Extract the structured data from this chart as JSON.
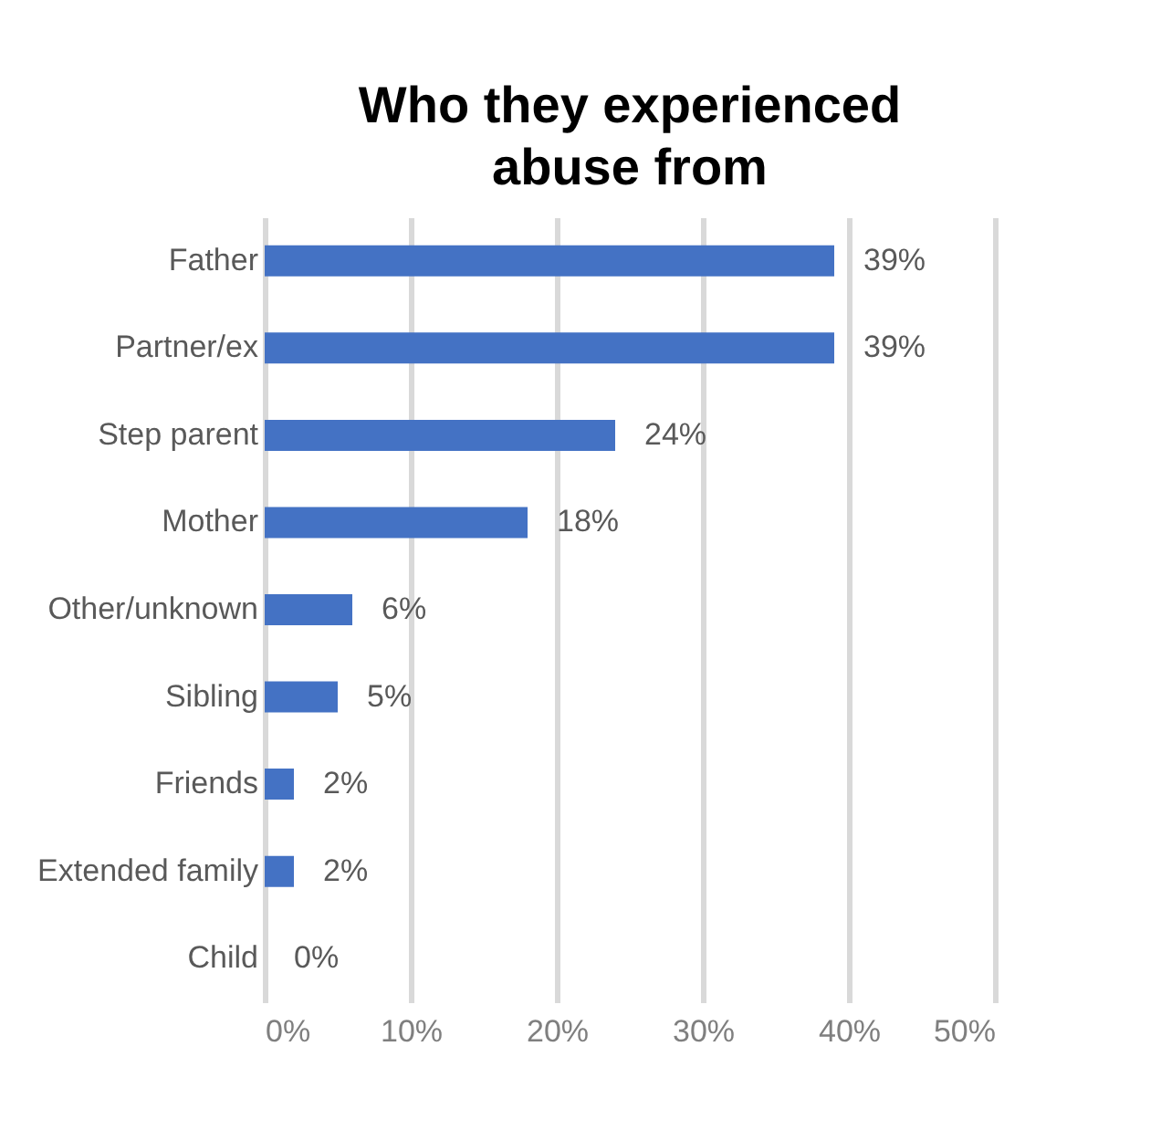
{
  "chart_data": {
    "type": "bar",
    "orientation": "horizontal",
    "title": "Who they experienced abuse from",
    "categories": [
      "Father",
      "Partner/ex",
      "Step parent",
      "Mother",
      "Other/unknown",
      "Sibling",
      "Friends",
      "Extended family",
      "Child"
    ],
    "values": [
      39,
      39,
      24,
      18,
      6,
      5,
      2,
      2,
      0
    ],
    "value_labels": [
      "39%",
      "39%",
      "24%",
      "18%",
      "6%",
      "5%",
      "2%",
      "2%",
      "0%"
    ],
    "color": "#4472c4",
    "xlim": [
      0,
      50
    ],
    "xticks": [
      {
        "value": 0,
        "label": "0%"
      },
      {
        "value": 10,
        "label": "10%"
      },
      {
        "value": 20,
        "label": "20%"
      },
      {
        "value": 30,
        "label": "30%"
      },
      {
        "value": 40,
        "label": "40%"
      },
      {
        "value": 50,
        "label": "50%"
      }
    ],
    "grid": "x"
  }
}
